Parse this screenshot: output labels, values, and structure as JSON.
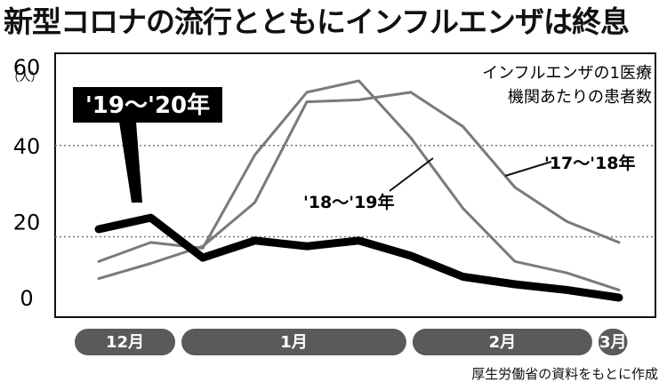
{
  "title": "新型コロナの流行とともにインフルエンザは終息",
  "source": "厚生労働省の資料をもとに作成",
  "chart_data": {
    "type": "line",
    "title": "インフルエンザの1医療機関あたりの患者数",
    "note_lines": [
      "インフルエンザの1医療",
      "機関あたりの患者数"
    ],
    "yunit": "（人）",
    "ylim": [
      0,
      60
    ],
    "yticks": [
      0,
      20,
      40,
      60
    ],
    "grid": "dotted lines at 16 and 40",
    "months": [
      {
        "label": "12月",
        "start": 0,
        "end": 2
      },
      {
        "label": "1月",
        "start": 2,
        "end": 6.6
      },
      {
        "label": "2月",
        "start": 6.6,
        "end": 10.3
      },
      {
        "label": "3月",
        "start": 10.3,
        "end": 11
      }
    ],
    "x": [
      0,
      1,
      2,
      3,
      4,
      5,
      6,
      7,
      8,
      9,
      10,
      11
    ],
    "series": [
      {
        "name": "'17～'18年",
        "color": "#7a7a7a",
        "width": 3,
        "values": [
          5,
          9,
          13.5,
          25,
          51.5,
          52,
          54,
          45,
          29,
          20,
          14.5,
          null
        ]
      },
      {
        "name": "'18～'19年",
        "color": "#7a7a7a",
        "width": 3,
        "values": [
          9.5,
          14.5,
          13,
          37.5,
          54,
          57,
          42,
          23.5,
          9.5,
          6.5,
          2,
          null
        ]
      },
      {
        "name": "'19～'20年",
        "color": "#000000",
        "width": 9,
        "values": [
          18,
          21,
          10.5,
          15,
          13.5,
          15,
          11,
          5.5,
          3.5,
          2,
          0,
          null
        ]
      }
    ]
  }
}
